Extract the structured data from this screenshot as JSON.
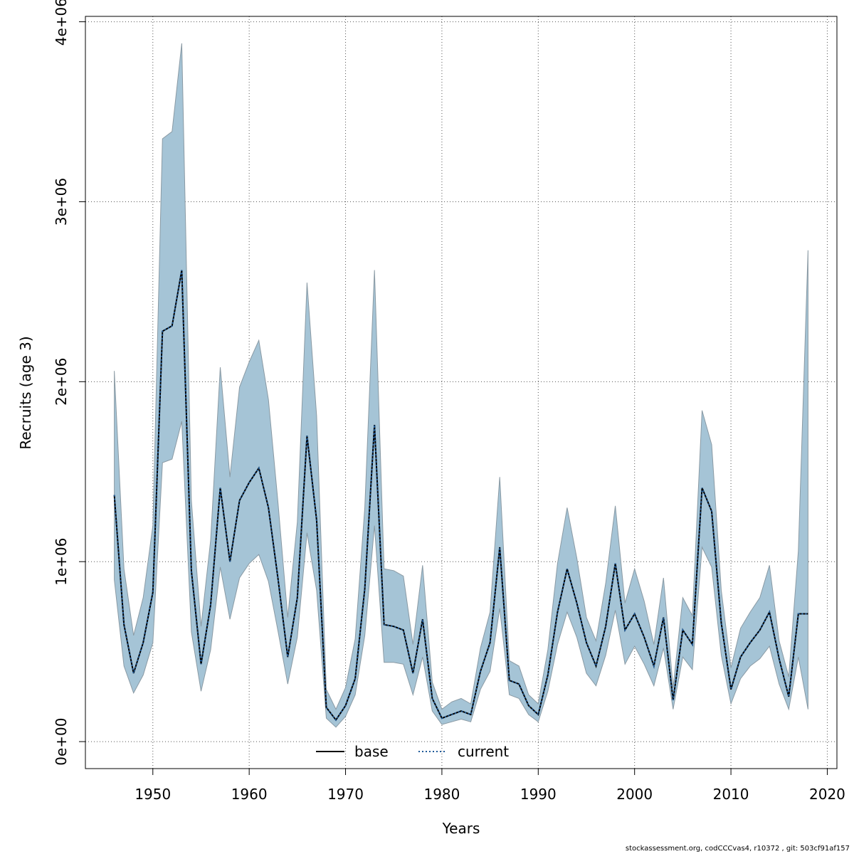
{
  "chart_data": {
    "type": "line",
    "xlabel": "Years",
    "ylabel": "Recruits (age 3)",
    "xlim": [
      1943,
      2021
    ],
    "ylim": [
      -150000,
      4030000
    ],
    "x_ticks": [
      1950,
      1960,
      1970,
      1980,
      1990,
      2000,
      2010,
      2020
    ],
    "y_ticks": [
      0,
      1000000,
      2000000,
      3000000,
      4000000
    ],
    "y_tick_labels": [
      "0e+00",
      "1e+06",
      "2e+06",
      "3e+06",
      "4e+06"
    ],
    "grid": true,
    "legend_position": "bottom-center",
    "colors": {
      "band": "#a5c4d6",
      "band_edge": "#8a9aa4",
      "base": "#000000",
      "current": "#1f5a99"
    },
    "x": [
      1946,
      1947,
      1948,
      1949,
      1950,
      1951,
      1952,
      1953,
      1954,
      1955,
      1956,
      1957,
      1958,
      1959,
      1960,
      1961,
      1962,
      1963,
      1964,
      1965,
      1966,
      1967,
      1968,
      1969,
      1970,
      1971,
      1972,
      1973,
      1974,
      1975,
      1976,
      1977,
      1978,
      1979,
      1980,
      1981,
      1982,
      1983,
      1984,
      1985,
      1986,
      1987,
      1988,
      1989,
      1990,
      1991,
      1992,
      1993,
      1994,
      1995,
      1996,
      1997,
      1998,
      1999,
      2000,
      2001,
      2002,
      2003,
      2004,
      2005,
      2006,
      2007,
      2008,
      2009,
      2010,
      2011,
      2012,
      2013,
      2014,
      2015,
      2016,
      2017,
      2018
    ],
    "series": [
      {
        "name": "base",
        "style": "solid",
        "values": [
          1370000,
          650000,
          380000,
          550000,
          830000,
          2280000,
          2310000,
          2620000,
          950000,
          430000,
          760000,
          1410000,
          1000000,
          1340000,
          1440000,
          1520000,
          1300000,
          900000,
          470000,
          800000,
          1700000,
          1230000,
          190000,
          120000,
          200000,
          350000,
          850000,
          1760000,
          650000,
          640000,
          620000,
          380000,
          680000,
          240000,
          130000,
          150000,
          170000,
          150000,
          390000,
          550000,
          1080000,
          340000,
          320000,
          200000,
          150000,
          370000,
          720000,
          960000,
          770000,
          550000,
          420000,
          640000,
          990000,
          620000,
          710000,
          580000,
          420000,
          690000,
          230000,
          620000,
          540000,
          1410000,
          1280000,
          660000,
          290000,
          470000,
          550000,
          620000,
          720000,
          460000,
          250000,
          710000,
          710000
        ]
      },
      {
        "name": "current",
        "style": "dotted",
        "values": [
          1370000,
          650000,
          380000,
          550000,
          830000,
          2280000,
          2310000,
          2620000,
          950000,
          430000,
          760000,
          1410000,
          1000000,
          1340000,
          1440000,
          1520000,
          1300000,
          900000,
          470000,
          800000,
          1700000,
          1230000,
          190000,
          120000,
          200000,
          350000,
          850000,
          1760000,
          650000,
          640000,
          620000,
          380000,
          680000,
          240000,
          130000,
          150000,
          170000,
          150000,
          390000,
          550000,
          1080000,
          340000,
          320000,
          200000,
          150000,
          370000,
          720000,
          960000,
          770000,
          550000,
          420000,
          640000,
          990000,
          620000,
          710000,
          580000,
          420000,
          690000,
          230000,
          620000,
          540000,
          1410000,
          1280000,
          660000,
          290000,
          470000,
          550000,
          620000,
          720000,
          460000,
          250000,
          710000,
          710000
        ]
      }
    ],
    "band_lower": [
      900000,
      420000,
      270000,
      370000,
      550000,
      1550000,
      1570000,
      1780000,
      610000,
      280000,
      510000,
      970000,
      680000,
      910000,
      990000,
      1040000,
      890000,
      610000,
      320000,
      580000,
      1160000,
      840000,
      130000,
      80000,
      140000,
      260000,
      590000,
      1200000,
      440000,
      440000,
      430000,
      260000,
      470000,
      170000,
      95000,
      110000,
      125000,
      110000,
      290000,
      390000,
      740000,
      260000,
      240000,
      150000,
      110000,
      280000,
      540000,
      720000,
      580000,
      380000,
      310000,
      480000,
      730000,
      430000,
      530000,
      430000,
      310000,
      520000,
      180000,
      470000,
      400000,
      1080000,
      970000,
      480000,
      210000,
      350000,
      420000,
      460000,
      530000,
      320000,
      180000,
      470000,
      180000
    ],
    "band_upper": [
      2060000,
      960000,
      590000,
      800000,
      1200000,
      3350000,
      3390000,
      3880000,
      1340000,
      640000,
      1120000,
      2080000,
      1470000,
      1970000,
      2110000,
      2230000,
      1900000,
      1320000,
      690000,
      1220000,
      2550000,
      1810000,
      290000,
      180000,
      300000,
      570000,
      1300000,
      2620000,
      960000,
      950000,
      920000,
      540000,
      980000,
      330000,
      180000,
      220000,
      240000,
      210000,
      520000,
      720000,
      1470000,
      450000,
      420000,
      260000,
      210000,
      510000,
      990000,
      1300000,
      1020000,
      690000,
      560000,
      880000,
      1310000,
      770000,
      960000,
      780000,
      540000,
      910000,
      300000,
      800000,
      700000,
      1840000,
      1650000,
      840000,
      410000,
      630000,
      720000,
      800000,
      980000,
      560000,
      360000,
      1060000,
      2730000
    ]
  },
  "legend": [
    {
      "label": "base",
      "style": "solid"
    },
    {
      "label": "current",
      "style": "dotted"
    }
  ],
  "footer": "stockassessment.org, codCCCvas4, r10372 , git: 503cf91af157"
}
